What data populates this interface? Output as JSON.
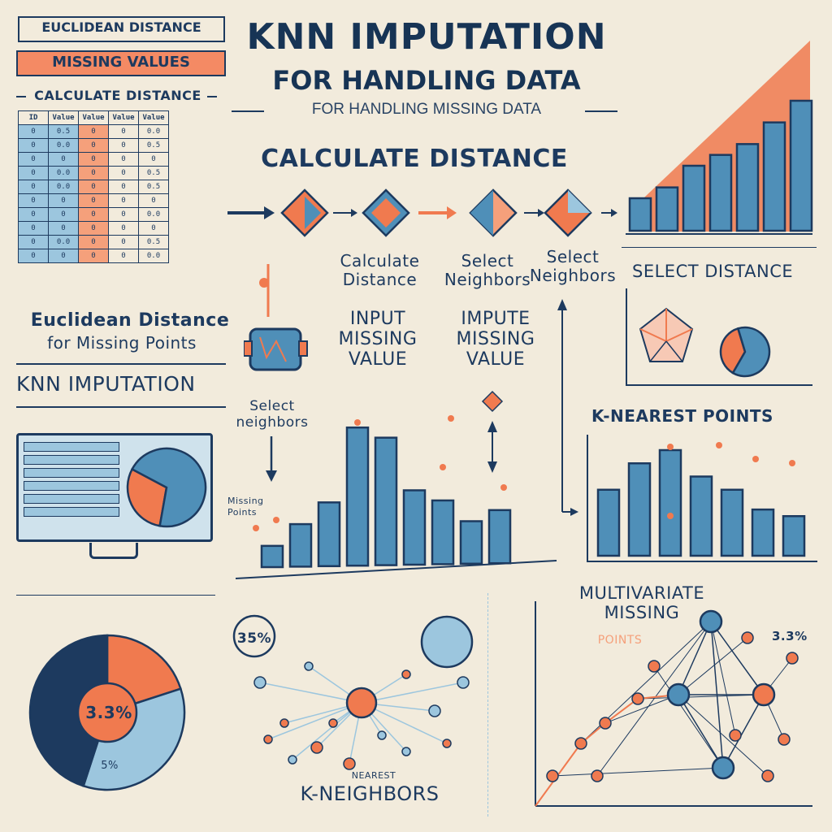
{
  "header": {
    "title": "KNN IMPUTATION",
    "subtitle": "FOR HANDLING DATA",
    "tagline": "FOR HANDLING MISSING DATA"
  },
  "left_panel": {
    "badge_top": "EUCLIDEAN DISTANCE",
    "badge_missing": "MISSING VALUES",
    "table_caption": "CALCULATE DISTANCE",
    "table_headers": [
      "ID",
      "Value",
      "Value",
      "Value",
      "Value"
    ],
    "table_rows": [
      [
        "0",
        "0.5",
        "0",
        "0",
        "0.0"
      ],
      [
        "0",
        "0.0",
        "0",
        "0",
        "0.5"
      ],
      [
        "0",
        "0",
        "0",
        "0",
        "0"
      ],
      [
        "0",
        "0.0",
        "0",
        "0",
        "0.5"
      ],
      [
        "0",
        "0.0",
        "0",
        "0",
        "0.5"
      ],
      [
        "0",
        "0",
        "0",
        "0",
        "0"
      ],
      [
        "0",
        "0",
        "0",
        "0",
        "0.0"
      ],
      [
        "0",
        "0",
        "0",
        "0",
        "0"
      ],
      [
        "0",
        "0.0",
        "0",
        "0",
        "0.5"
      ],
      [
        "0",
        "0",
        "0",
        "0",
        "0.0"
      ]
    ],
    "euclid_title": "Euclidean Distance",
    "euclid_sub": "for Missing Points",
    "knn_label": "KNN IMPUTATION"
  },
  "flow": {
    "heading": "CALCULATE DISTANCE",
    "step1": "Calculate Distance",
    "step2": "Select Neighbors",
    "step3": "Select Neighbors",
    "impute1": "INPUT MISSING VALUE",
    "impute2": "IMPUTE MISSING VALUE",
    "select_neighbors": "Select neighbors",
    "missing_points": "Missing Points"
  },
  "right_panel": {
    "select_distance": "SELECT DISTANCE",
    "nearest_points": "K-NEAREST POINTS",
    "multivariate": "MULTIVARIATE MISSING",
    "points": "POINTS",
    "percent_right": "3.3%"
  },
  "bottom": {
    "pie_percent": "3.3%",
    "pie_small": "5%",
    "circle_left": "35%",
    "k_neighbors": "K-NEIGHBORS",
    "nearest": "NEAREST"
  },
  "colors": {
    "navy": "#1d3a5f",
    "blue": "#4f8fb8",
    "light_blue": "#9cc6de",
    "orange": "#f07a4f",
    "background": "#f2ebdc"
  },
  "chart_data": [
    {
      "type": "bar",
      "values": [
        3,
        4,
        6,
        7,
        8,
        10,
        12
      ]
    },
    {
      "type": "bar",
      "values": [
        2,
        4,
        6,
        13,
        12,
        7,
        6,
        4,
        5
      ]
    },
    {
      "type": "bar",
      "values": [
        5,
        7,
        8,
        6,
        5,
        3.5,
        3
      ]
    },
    {
      "type": "pie",
      "values": [
        30,
        70
      ]
    },
    {
      "type": "pie",
      "values": [
        37,
        63
      ]
    },
    {
      "type": "pie",
      "values": [
        20,
        35,
        45
      ]
    }
  ]
}
